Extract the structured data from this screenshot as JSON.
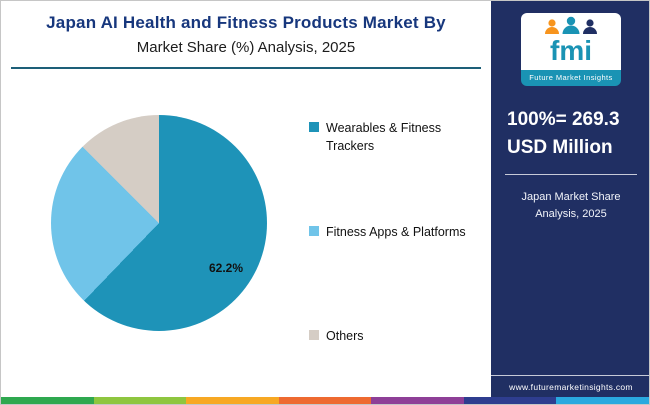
{
  "title": {
    "line1": "Japan AI Health and Fitness Products Market By",
    "line2": "Market Share (%) Analysis, 2025"
  },
  "chart_data": {
    "type": "pie",
    "title": "Japan AI Health and Fitness Products Market By Market Share (%) Analysis, 2025",
    "labels": [
      "Wearables & Fitness Trackers",
      "Fitness Apps & Platforms",
      "Others"
    ],
    "values": [
      62.2,
      25.3,
      12.5
    ],
    "colors": [
      "#1e93b8",
      "#70c4e9",
      "#d5cdc5"
    ],
    "data_label": "62.2%",
    "legend_position": "right"
  },
  "sidebar": {
    "logo_text": "fmi",
    "logo_caption": "Future Market Insights",
    "stat_line1": "100%= 269.3",
    "stat_line2": "USD Million",
    "caption": "Japan Market Share Analysis, 2025",
    "website": "www.futuremarketinsights.com",
    "background": "#202f63",
    "accent_teal": "#1a93b4"
  },
  "footer_stripe_colors": [
    "#2fa84f",
    "#8ec63f",
    "#f7a823",
    "#ee6a31",
    "#8e3f97",
    "#2e3d8f",
    "#2aa9df"
  ]
}
